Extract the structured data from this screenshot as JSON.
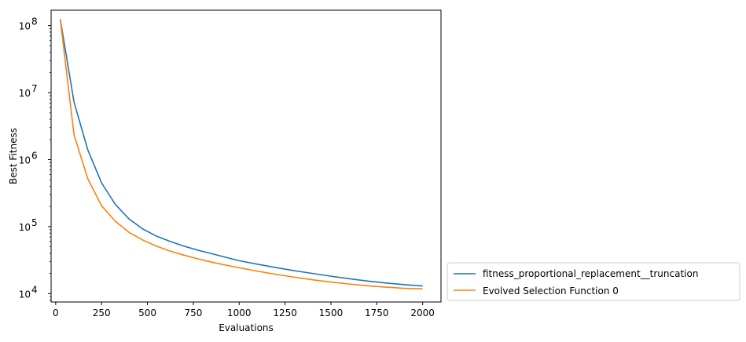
{
  "chart_data": {
    "type": "line",
    "xlabel": "Evaluations",
    "ylabel": "Best Fitness",
    "yscale": "log",
    "xlim": [
      -25,
      2100
    ],
    "ylim": [
      7500,
      170000000
    ],
    "xticks": [
      {
        "value": 0,
        "label": "0"
      },
      {
        "value": 250,
        "label": "250"
      },
      {
        "value": 500,
        "label": "500"
      },
      {
        "value": 750,
        "label": "750"
      },
      {
        "value": 1000,
        "label": "1000"
      },
      {
        "value": 1250,
        "label": "1250"
      },
      {
        "value": 1500,
        "label": "1500"
      },
      {
        "value": 1750,
        "label": "1750"
      },
      {
        "value": 2000,
        "label": "2000"
      }
    ],
    "yticks": [
      {
        "value": 10000,
        "base": "10",
        "exp": "4"
      },
      {
        "value": 100000,
        "base": "10",
        "exp": "5"
      },
      {
        "value": 1000000,
        "base": "10",
        "exp": "6"
      },
      {
        "value": 10000000,
        "base": "10",
        "exp": "7"
      },
      {
        "value": 100000000,
        "base": "10",
        "exp": "8"
      }
    ],
    "grid": false,
    "legend_position": "outside-lower-right",
    "series": [
      {
        "name": "fitness_proportional_replacement__truncation",
        "color": "#1f77b4",
        "x": [
          25,
          100,
          175,
          250,
          325,
          400,
          475,
          550,
          625,
          700,
          775,
          850,
          925,
          1000,
          1100,
          1200,
          1300,
          1400,
          1500,
          1600,
          1700,
          1800,
          1900,
          2000
        ],
        "y": [
          125000000,
          7200000,
          1400000,
          450000,
          215000,
          130000,
          92000,
          72000,
          60000,
          51000,
          44500,
          39500,
          35000,
          31000,
          27500,
          24500,
          22000,
          20000,
          18200,
          16700,
          15400,
          14400,
          13600,
          13000
        ]
      },
      {
        "name": "Evolved Selection Function 0",
        "color": "#ff7f0e",
        "x": [
          25,
          100,
          175,
          250,
          325,
          400,
          475,
          550,
          625,
          700,
          775,
          850,
          925,
          1000,
          1100,
          1200,
          1300,
          1400,
          1500,
          1600,
          1700,
          1800,
          1900,
          2000
        ],
        "y": [
          125000000,
          2350000,
          520000,
          205000,
          120000,
          82000,
          63000,
          51000,
          43000,
          37500,
          33000,
          29500,
          26700,
          24300,
          21600,
          19400,
          17600,
          16100,
          14900,
          13900,
          13100,
          12500,
          12000,
          11800
        ]
      }
    ]
  }
}
